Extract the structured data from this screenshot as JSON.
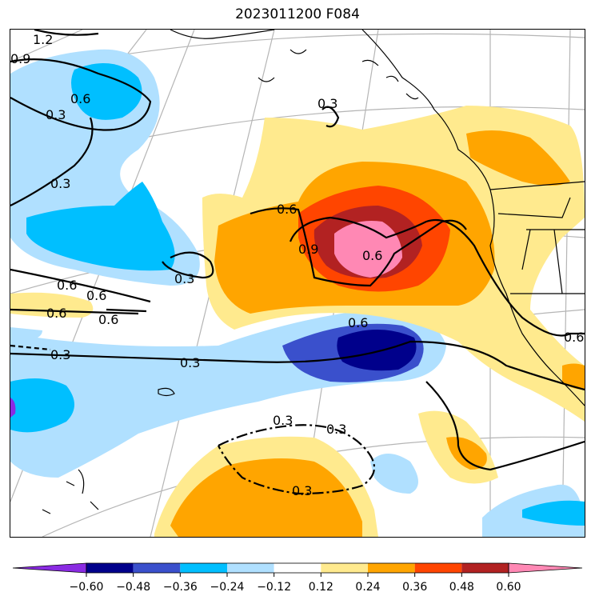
{
  "title": "2023011200 F084",
  "colorbar": {
    "colors": [
      "#8a2be2",
      "#00008b",
      "#3a50cc",
      "#00bfff",
      "#b0e0ff",
      "#ffffff",
      "#ffea8e",
      "#ffa500",
      "#ff4500",
      "#b22222",
      "#ff88b4"
    ],
    "ticks": [
      "−0.60",
      "−0.48",
      "−0.36",
      "−0.24",
      "−0.12",
      "0.12",
      "0.24",
      "0.36",
      "0.48",
      "0.60"
    ]
  },
  "contour_labels": [
    "1.2",
    "0.9",
    "0.6",
    "0.3",
    "0.3",
    "0.3",
    "0.6",
    "0.9",
    "0.6",
    "0.3",
    "0.6",
    "0.6",
    "0.6",
    "0.6",
    "0.3",
    "0.3",
    "0.6",
    "0.6",
    "0.3",
    "0.3",
    "0.3"
  ]
}
